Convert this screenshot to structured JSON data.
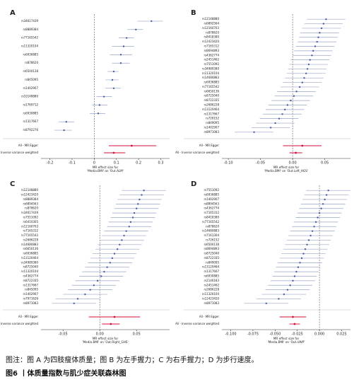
{
  "chart_data": [
    {
      "type": "forest",
      "panel": "A",
      "xlabel": [
        "MR effect size for",
        "'Media.BMI' on 'Out.ALM'"
      ],
      "categories": [
        "rs34617439",
        "rs8889384",
        "rs77165542",
        "rs11320104",
        "rs6936885",
        "rs878620",
        "rs6500138",
        "rs845095",
        "rs1402907",
        "rs10148880",
        "rs1769712",
        "rs6930885",
        "rs1317667",
        "rs8792276"
      ],
      "values": [
        0.258,
        0.188,
        0.146,
        0.133,
        0.12,
        0.12,
        0.088,
        0.082,
        0.088,
        0.044,
        0.024,
        0.018,
        -0.126,
        -0.136
      ],
      "lower": [
        0.195,
        0.15,
        0.11,
        0.08,
        0.07,
        0.08,
        0.06,
        0.05,
        0.05,
        0.01,
        -0.01,
        -0.02,
        -0.16,
        -0.18
      ],
      "upper": [
        0.31,
        0.22,
        0.18,
        0.18,
        0.17,
        0.16,
        0.11,
        0.11,
        0.12,
        0.08,
        0.06,
        0.05,
        -0.09,
        -0.1
      ],
      "summary_labels": [
        "All - MR Egger",
        "All - Inverse variance weighted"
      ],
      "summary_values": [
        0.169,
        0.088
      ],
      "summary_lower": [
        0.066,
        0.044
      ],
      "summary_upper": [
        0.28,
        0.14
      ],
      "xlim": [
        -0.24,
        0.34
      ],
      "xticks": [
        -0.2,
        -0.1,
        0,
        0.1,
        0.2,
        0.3
      ],
      "point_color": "#4a5c9a",
      "line_color": "#9aa6c8",
      "summary_color": "#d0103a"
    },
    {
      "type": "forest",
      "panel": "B",
      "xlabel": [
        "MR effect size for",
        "'Media.BMI' on 'Out.Left_HGS'"
      ],
      "categories": [
        "rs12148880",
        "rs6892564",
        "rs12160703",
        "rs878620",
        "rs8418380",
        "rs12423420",
        "rs7165312",
        "rs8694893",
        "rs4362774",
        "rs2451462",
        "rs7551092",
        "rs34989380",
        "rs11320104",
        "rs14680883",
        "rs6936885",
        "rs77165542",
        "rs6650136",
        "rs8725040",
        "rs8722335",
        "rs2686228",
        "rs13120464",
        "rs1317667",
        "rs726152",
        "rs849095",
        "rs1402907",
        "rs8971083"
      ],
      "values": [
        0.052,
        0.048,
        0.045,
        0.042,
        0.04,
        0.038,
        0.035,
        0.032,
        0.03,
        0.027,
        0.025,
        0.023,
        0.021,
        0.018,
        0.015,
        0.011,
        0.006,
        0.002,
        -0.003,
        -0.008,
        -0.012,
        -0.016,
        -0.021,
        -0.027,
        -0.034,
        -0.06
      ],
      "lower": [
        0.022,
        0.018,
        0.015,
        0.012,
        0.01,
        0.008,
        0.005,
        0.002,
        0.0,
        -0.003,
        -0.005,
        -0.007,
        -0.009,
        -0.012,
        -0.015,
        -0.019,
        -0.024,
        -0.028,
        -0.033,
        -0.038,
        -0.042,
        -0.046,
        -0.051,
        -0.057,
        -0.064,
        -0.09
      ],
      "upper": [
        0.082,
        0.078,
        0.075,
        0.072,
        0.07,
        0.068,
        0.065,
        0.062,
        0.06,
        0.057,
        0.055,
        0.053,
        0.051,
        0.048,
        0.045,
        0.041,
        0.036,
        0.032,
        0.027,
        0.022,
        0.018,
        0.014,
        0.009,
        0.003,
        -0.004,
        -0.03
      ],
      "summary_labels": [
        "All - MR Egger",
        "All - Inverse variance weighted"
      ],
      "summary_values": [
        0.015,
        0.005
      ],
      "summary_lower": [
        -0.015,
        -0.005
      ],
      "summary_upper": [
        0.045,
        0.015
      ],
      "xlim": [
        -0.11,
        0.09
      ],
      "xticks": [
        {
          "value": -0.1,
          "label": "-0.10"
        },
        {
          "value": -0.05,
          "label": "-0.05"
        },
        {
          "value": 0,
          "label": "0.00"
        },
        {
          "value": 0.05,
          "label": "0.05"
        }
      ],
      "point_color": "#4a5c9a",
      "line_color": "#9aa6c8",
      "summary_color": "#d0103a"
    },
    {
      "type": "forest",
      "panel": "C",
      "xlabel": [
        "MR effect size for",
        "'Media.BMI' on 'Out.Right_GHS'"
      ],
      "categories": [
        "rs12148880",
        "rs12423420",
        "rs8889384",
        "rs6894563",
        "rs878620",
        "rs34617439",
        "rs7551092",
        "rs6410305",
        "rs12160703",
        "rs7165312",
        "rs77165542",
        "rs2686228",
        "rs14680883",
        "rs6650136",
        "rs6936885",
        "rs13120464",
        "rs34989380",
        "rs8725040",
        "rs11320104",
        "rs4362774",
        "rs8722335",
        "rs1317667",
        "rs845095",
        "rs1402907",
        "rs7971626",
        "rs8971083"
      ],
      "values": [
        0.06,
        0.057,
        0.054,
        0.052,
        0.05,
        0.047,
        0.045,
        0.042,
        0.04,
        0.036,
        0.033,
        0.03,
        0.027,
        0.024,
        0.02,
        0.017,
        0.014,
        0.01,
        0.006,
        0.002,
        -0.003,
        -0.008,
        -0.013,
        -0.02,
        -0.03,
        -0.035
      ],
      "lower": [
        0.03,
        0.027,
        0.024,
        0.022,
        0.02,
        0.017,
        0.015,
        0.012,
        0.01,
        0.006,
        0.003,
        0.0,
        -0.003,
        -0.006,
        -0.01,
        -0.013,
        -0.016,
        -0.02,
        -0.024,
        -0.028,
        -0.033,
        -0.038,
        -0.043,
        -0.05,
        -0.06,
        -0.065
      ],
      "upper": [
        0.09,
        0.087,
        0.084,
        0.082,
        0.08,
        0.077,
        0.075,
        0.072,
        0.07,
        0.066,
        0.063,
        0.06,
        0.057,
        0.054,
        0.05,
        0.047,
        0.044,
        0.04,
        0.036,
        0.032,
        0.027,
        0.022,
        0.017,
        0.01,
        0.0,
        -0.005
      ],
      "summary_labels": [
        "All - MR Egger",
        "All - Inverse variance weighted"
      ],
      "summary_values": [
        0.02,
        0.015
      ],
      "summary_lower": [
        -0.015,
        0.003
      ],
      "summary_upper": [
        0.055,
        0.027
      ],
      "xlim": [
        -0.08,
        0.095
      ],
      "xticks": [
        {
          "value": -0.05,
          "label": "-0.05"
        },
        {
          "value": 0,
          "label": "0.00"
        },
        {
          "value": 0.05,
          "label": "0.05"
        }
      ],
      "point_color": "#4a5c9a",
      "line_color": "#9aa6c8",
      "summary_color": "#d0103a"
    },
    {
      "type": "forest",
      "panel": "D",
      "xlabel": [
        "MR effect size for",
        "'Media.BMI' on 'Out.UWP'"
      ],
      "categories": [
        "rs7551092",
        "rs6936885",
        "rs1402907",
        "rs8894563",
        "rs4362774",
        "rs7165312",
        "rs8418380",
        "rs77165542",
        "rs878620",
        "rs14680883",
        "rs7161304",
        "rs726152",
        "rs6500138",
        "rs8694893",
        "rs8725040",
        "rs8722335",
        "rs849095",
        "rs13120464",
        "rs1317667",
        "rs6930885",
        "rs2146183",
        "rs2451462",
        "rs2686228",
        "rs11320104",
        "rs12423420",
        "rs8971083"
      ],
      "values": [
        0.01,
        0.008,
        0.006,
        0.004,
        0.002,
        0.0,
        -0.002,
        -0.004,
        -0.006,
        -0.008,
        -0.01,
        -0.012,
        -0.014,
        -0.016,
        -0.018,
        -0.02,
        -0.022,
        -0.024,
        -0.026,
        -0.028,
        -0.03,
        -0.033,
        -0.036,
        -0.04,
        -0.046,
        -0.06
      ],
      "lower": [
        -0.015,
        -0.017,
        -0.019,
        -0.021,
        -0.023,
        -0.025,
        -0.027,
        -0.029,
        -0.031,
        -0.033,
        -0.035,
        -0.037,
        -0.039,
        -0.041,
        -0.043,
        -0.045,
        -0.047,
        -0.049,
        -0.051,
        -0.053,
        -0.055,
        -0.058,
        -0.061,
        -0.065,
        -0.071,
        -0.085
      ],
      "upper": [
        0.035,
        0.033,
        0.031,
        0.029,
        0.027,
        0.025,
        0.023,
        0.021,
        0.019,
        0.017,
        0.015,
        0.013,
        0.011,
        0.009,
        0.007,
        0.005,
        0.003,
        0.001,
        -0.001,
        -0.003,
        -0.005,
        -0.008,
        -0.011,
        -0.015,
        -0.021,
        -0.035
      ],
      "summary_labels": [
        "All - MR Egger",
        "All - Inverse variance weighted"
      ],
      "summary_values": [
        -0.03,
        -0.028
      ],
      "summary_lower": [
        -0.045,
        -0.034
      ],
      "summary_upper": [
        -0.015,
        -0.022
      ],
      "xlim": [
        -0.11,
        0.035
      ],
      "xticks": [
        {
          "value": -0.1,
          "label": "-0.100"
        },
        {
          "value": -0.075,
          "label": "-0.075"
        },
        {
          "value": -0.05,
          "label": "-0.050"
        },
        {
          "value": -0.025,
          "label": "-0.025"
        },
        {
          "value": 0,
          "label": "0.000"
        },
        {
          "value": 0.025,
          "label": "0.025"
        }
      ],
      "point_color": "#4a5c9a",
      "line_color": "#9aa6c8",
      "summary_color": "#d0103a"
    }
  ],
  "caption": {
    "note": "图注：图 A 为四肢瘦体质量；图 B 为左手握力；C 为右手握力；D 为步行速度。",
    "title": "图6 丨体质量指数与肌少症关联森林图"
  }
}
